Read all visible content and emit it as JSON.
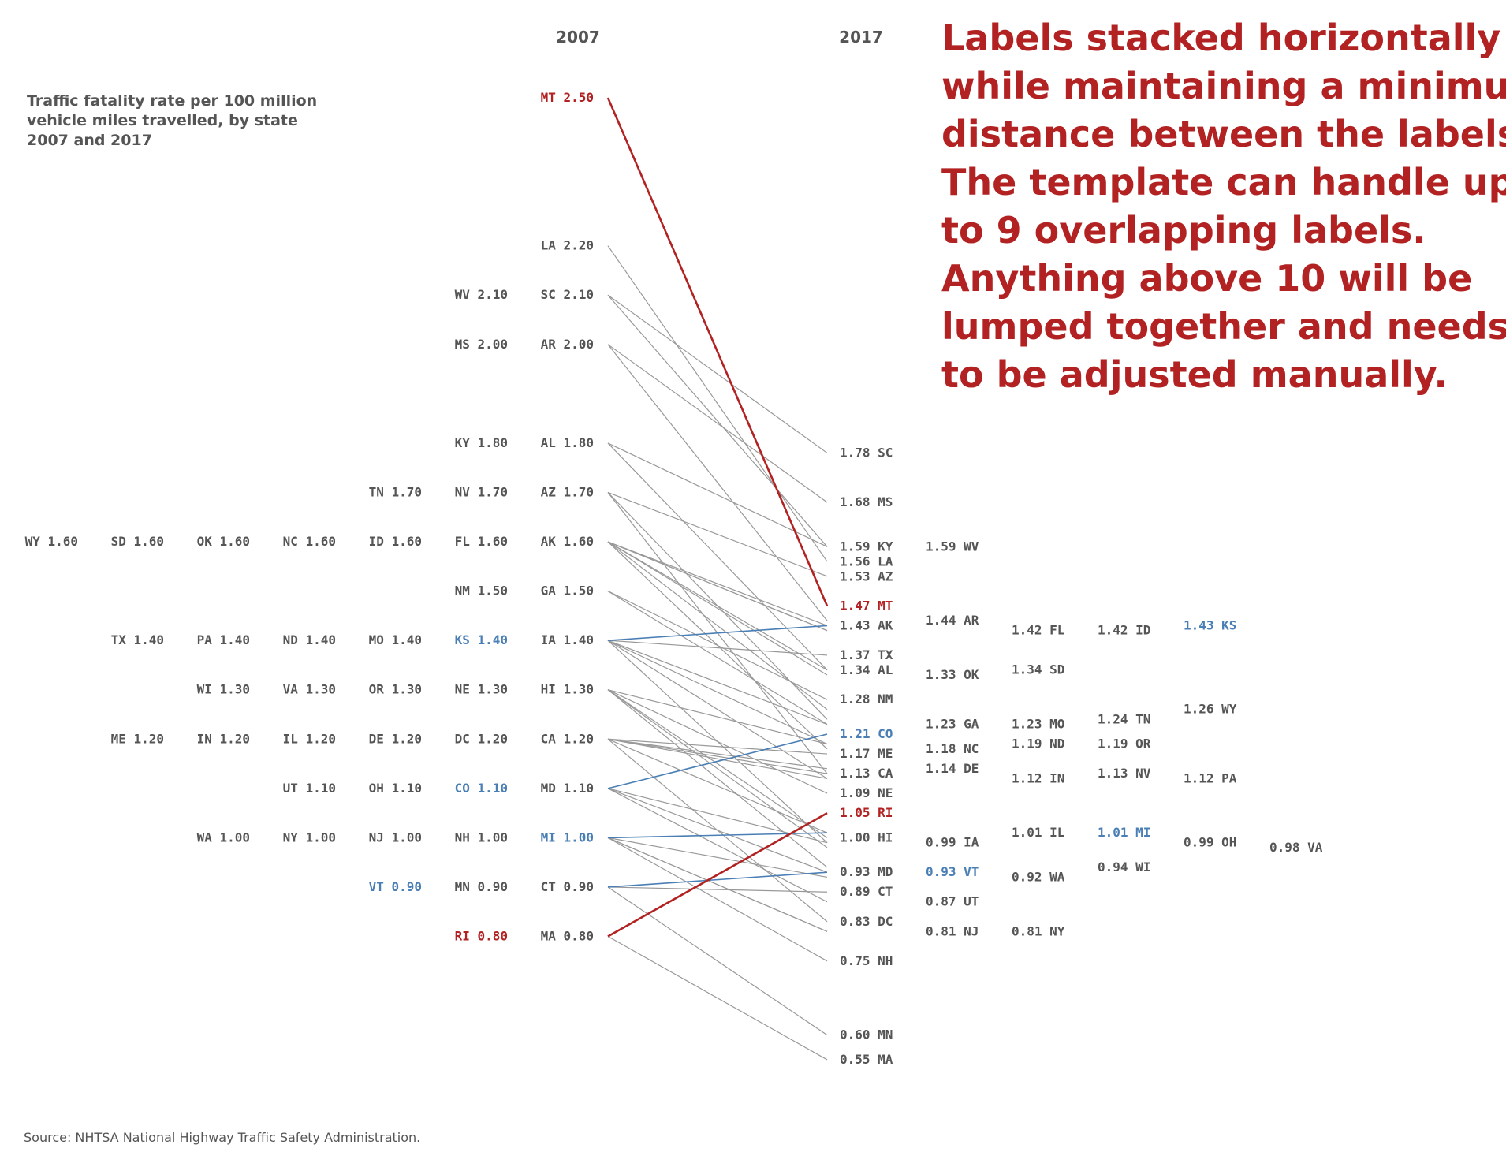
{
  "chart_data": {
    "type": "slope",
    "header_left": "2007",
    "header_right": "2017",
    "title_lines": [
      "Traffic fatality rate per 100 million",
      "vehicle miles travelled, by state",
      "2007 and 2017"
    ],
    "source": "Source: NHTSA National Highway Traffic Safety Administration.",
    "annotation_lines": [
      "Labels stacked horizontally",
      "while maintaining a minimum",
      "distance between the labels.",
      "The template can handle up",
      "to 9 overlapping labels.",
      "Anything above 10 will be",
      "lumped together and needs",
      "to be adjusted manually."
    ],
    "highlight_colors": {
      "red": "#b22222",
      "blue": "#4a7fb5",
      "default": "#999999",
      "text": "#555555"
    },
    "states": [
      {
        "state": "MT",
        "v2007": 2.5,
        "v2017": 1.47,
        "highlight": "red"
      },
      {
        "state": "LA",
        "v2007": 2.2,
        "v2017": 1.56
      },
      {
        "state": "SC",
        "v2007": 2.1,
        "v2017": 1.78
      },
      {
        "state": "WV",
        "v2007": 2.1,
        "v2017": 1.59
      },
      {
        "state": "AR",
        "v2007": 2.0,
        "v2017": 1.44
      },
      {
        "state": "MS",
        "v2007": 2.0,
        "v2017": 1.68
      },
      {
        "state": "AL",
        "v2007": 1.8,
        "v2017": 1.34
      },
      {
        "state": "KY",
        "v2007": 1.8,
        "v2017": 1.59
      },
      {
        "state": "AZ",
        "v2007": 1.7,
        "v2017": 1.53
      },
      {
        "state": "NV",
        "v2007": 1.7,
        "v2017": 1.13
      },
      {
        "state": "TN",
        "v2007": 1.7,
        "v2017": 1.24
      },
      {
        "state": "AK",
        "v2007": 1.6,
        "v2017": 1.43
      },
      {
        "state": "FL",
        "v2007": 1.6,
        "v2017": 1.42
      },
      {
        "state": "ID",
        "v2007": 1.6,
        "v2017": 1.42
      },
      {
        "state": "NC",
        "v2007": 1.6,
        "v2017": 1.18
      },
      {
        "state": "OK",
        "v2007": 1.6,
        "v2017": 1.33
      },
      {
        "state": "SD",
        "v2007": 1.6,
        "v2017": 1.34
      },
      {
        "state": "WY",
        "v2007": 1.6,
        "v2017": 1.26
      },
      {
        "state": "GA",
        "v2007": 1.5,
        "v2017": 1.23
      },
      {
        "state": "NM",
        "v2007": 1.5,
        "v2017": 1.28
      },
      {
        "state": "IA",
        "v2007": 1.4,
        "v2017": 0.99
      },
      {
        "state": "KS",
        "v2007": 1.4,
        "v2017": 1.43,
        "highlight": "blue"
      },
      {
        "state": "MO",
        "v2007": 1.4,
        "v2017": 1.23
      },
      {
        "state": "ND",
        "v2007": 1.4,
        "v2017": 1.19
      },
      {
        "state": "PA",
        "v2007": 1.4,
        "v2017": 1.12
      },
      {
        "state": "TX",
        "v2007": 1.4,
        "v2017": 1.37
      },
      {
        "state": "HI",
        "v2007": 1.3,
        "v2017": 1.0
      },
      {
        "state": "NE",
        "v2007": 1.3,
        "v2017": 1.09
      },
      {
        "state": "OR",
        "v2007": 1.3,
        "v2017": 1.19
      },
      {
        "state": "VA",
        "v2007": 1.3,
        "v2017": 0.98
      },
      {
        "state": "WI",
        "v2007": 1.3,
        "v2017": 0.94
      },
      {
        "state": "CA",
        "v2007": 1.2,
        "v2017": 1.13
      },
      {
        "state": "DC",
        "v2007": 1.2,
        "v2017": 0.83
      },
      {
        "state": "DE",
        "v2007": 1.2,
        "v2017": 1.14
      },
      {
        "state": "IL",
        "v2007": 1.2,
        "v2017": 1.01
      },
      {
        "state": "IN",
        "v2007": 1.2,
        "v2017": 1.12
      },
      {
        "state": "ME",
        "v2007": 1.2,
        "v2017": 1.17
      },
      {
        "state": "CO",
        "v2007": 1.1,
        "v2017": 1.21,
        "highlight": "blue"
      },
      {
        "state": "MD",
        "v2007": 1.1,
        "v2017": 0.93
      },
      {
        "state": "OH",
        "v2007": 1.1,
        "v2017": 0.99
      },
      {
        "state": "UT",
        "v2007": 1.1,
        "v2017": 0.87
      },
      {
        "state": "MI",
        "v2007": 1.0,
        "v2017": 1.01,
        "highlight": "blue"
      },
      {
        "state": "NH",
        "v2007": 1.0,
        "v2017": 0.75
      },
      {
        "state": "NJ",
        "v2007": 1.0,
        "v2017": 0.81
      },
      {
        "state": "NY",
        "v2007": 1.0,
        "v2017": 0.81
      },
      {
        "state": "WA",
        "v2007": 1.0,
        "v2017": 0.92
      },
      {
        "state": "CT",
        "v2007": 0.9,
        "v2017": 0.89
      },
      {
        "state": "MN",
        "v2007": 0.9,
        "v2017": 0.6
      },
      {
        "state": "VT",
        "v2007": 0.9,
        "v2017": 0.93,
        "highlight": "blue"
      },
      {
        "state": "MA",
        "v2007": 0.8,
        "v2017": 0.55
      },
      {
        "state": "RI",
        "v2007": 0.8,
        "v2017": 1.05,
        "highlight": "red"
      }
    ],
    "left_rows": [
      [
        "MT"
      ],
      [
        "LA"
      ],
      [
        "SC",
        "WV"
      ],
      [
        "AR",
        "MS"
      ],
      [
        "AL",
        "KY"
      ],
      [
        "AZ",
        "NV",
        "TN"
      ],
      [
        "AK",
        "FL",
        "ID",
        "NC",
        "OK",
        "SD",
        "WY"
      ],
      [
        "GA",
        "NM"
      ],
      [
        "IA",
        "KS",
        "MO",
        "ND",
        "PA",
        "TX"
      ],
      [
        "HI",
        "NE",
        "OR",
        "VA",
        "WI"
      ],
      [
        "CA",
        "DC",
        "DE",
        "IL",
        "IN",
        "ME"
      ],
      [
        "MD",
        "CO",
        "OH",
        "UT"
      ],
      [
        "MI",
        "NH",
        "NJ",
        "NY",
        "WA"
      ],
      [
        "CT",
        "MN",
        "VT"
      ],
      [
        "MA",
        "RI"
      ]
    ],
    "right_rows": [
      [
        "SC"
      ],
      [
        "MS"
      ],
      [
        "KY",
        "WV"
      ],
      [
        "LA"
      ],
      [
        "AZ"
      ],
      [
        "MT"
      ],
      [
        "AK",
        "AR",
        "FL",
        "ID",
        "KS"
      ],
      [
        "TX"
      ],
      [
        "AL",
        "OK",
        "SD"
      ],
      [
        "NM"
      ],
      [
        "CO",
        "GA",
        "MO",
        "TN",
        "WY"
      ],
      [
        "ME",
        "NC",
        "ND",
        "OR"
      ],
      [
        "CA",
        "DE",
        "IN",
        "NV",
        "PA"
      ],
      [
        "NE"
      ],
      [
        "RI"
      ],
      [
        "HI",
        "IA",
        "IL",
        "MI",
        "OH",
        "VA"
      ],
      [
        "MD",
        "VT",
        "WA",
        "WI"
      ],
      [
        "CT",
        "UT"
      ],
      [
        "DC",
        "NJ",
        "NY"
      ],
      [
        "NH"
      ],
      [
        "MN"
      ],
      [
        "MA"
      ]
    ]
  }
}
